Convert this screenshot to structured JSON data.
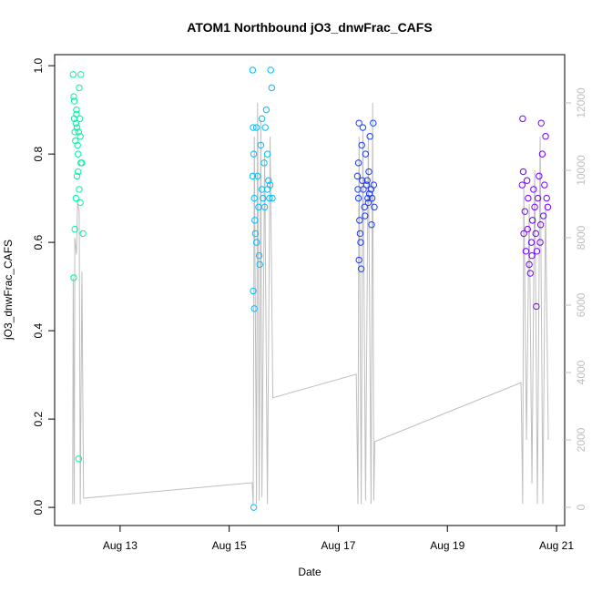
{
  "chart_data": {
    "type": "scatter",
    "title": "ATOM1 Northbound jO3_dnwFrac_CAFS",
    "x_label": "Date",
    "y_label": "jO3_dnwFrac_CAFS",
    "xlim": [
      11.8,
      21.15
    ],
    "xticks": [
      {
        "value": 13,
        "label": "Aug 13"
      },
      {
        "value": 15,
        "label": "Aug 15"
      },
      {
        "value": 17,
        "label": "Aug 17"
      },
      {
        "value": 19,
        "label": "Aug 19"
      },
      {
        "value": 21,
        "label": "Aug 21"
      }
    ],
    "ylim": [
      -0.041,
      1.025
    ],
    "yticks": [
      {
        "value": 0,
        "label": "0.0"
      },
      0.2,
      0.4,
      0.6,
      0.8,
      {
        "value": 1,
        "label": "1.0"
      }
    ],
    "y2lim": [
      -540,
      13432
    ],
    "y2ticks": [
      0,
      2000,
      4000,
      6000,
      8000,
      10000,
      12000
    ],
    "series": [
      {
        "type": "line",
        "axis": "y2",
        "color": "#bebebe",
        "x": [
          12.13,
          12.14,
          12.16,
          12.17,
          12.2,
          12.22,
          12.25,
          12.27,
          12.3,
          12.33,
          15.42,
          15.44,
          15.46,
          15.5,
          15.52,
          15.55,
          15.58,
          15.6,
          15.65,
          15.7,
          15.75,
          15.8,
          17.33,
          17.36,
          17.38,
          17.42,
          17.45,
          17.5,
          17.55,
          17.6,
          17.63,
          17.65,
          17.67,
          20.35,
          20.38,
          20.4,
          20.45,
          20.5,
          20.55,
          20.6,
          20.65,
          20.7,
          20.75,
          20.8,
          20.85
        ],
        "values": [
          100,
          6800,
          100,
          8000,
          7500,
          9000,
          8800,
          100,
          7000,
          270,
          730,
          100,
          11000,
          100,
          12000,
          200,
          11500,
          300,
          10500,
          100,
          11000,
          3250,
          3950,
          100,
          11000,
          100,
          11200,
          200,
          11000,
          100,
          12000,
          200,
          1950,
          3700,
          100,
          9500,
          2000,
          9000,
          700,
          10000,
          100,
          11000,
          100,
          9000,
          2000
        ]
      },
      {
        "color": "#00f5a0",
        "x": [
          12.14,
          12.15,
          12.16,
          12.17,
          12.18,
          12.19,
          12.2,
          12.21,
          12.22,
          12.23,
          12.24,
          12.25,
          12.26,
          12.27,
          12.28,
          12.15,
          12.17,
          12.19,
          12.21,
          12.23,
          12.25,
          12.27,
          12.3,
          12.32,
          12.16,
          12.2,
          12.24,
          12.28
        ],
        "values": [
          0.98,
          0.93,
          0.88,
          0.85,
          0.83,
          0.87,
          0.9,
          0.86,
          0.82,
          0.8,
          0.85,
          0.95,
          0.88,
          0.84,
          0.78,
          0.52,
          0.63,
          0.7,
          0.75,
          0.76,
          0.72,
          0.69,
          0.78,
          0.62,
          0.92,
          0.89,
          0.11,
          0.98
        ]
      },
      {
        "color": "#00bfff",
        "x": [
          15.43,
          15.44,
          15.45,
          15.46,
          15.47,
          15.48,
          15.5,
          15.52,
          15.54,
          15.56,
          15.58,
          15.6,
          15.62,
          15.64,
          15.66,
          15.68,
          15.7,
          15.72,
          15.74,
          15.76,
          15.78,
          15.44,
          15.46,
          15.5,
          15.55,
          15.6,
          15.65,
          15.7,
          15.75,
          15.79,
          15.45,
          15.43
        ],
        "values": [
          0.99,
          0.86,
          0.8,
          0.7,
          0.65,
          0.62,
          0.6,
          0.75,
          0.68,
          0.55,
          0.82,
          0.72,
          0.7,
          0.78,
          0.86,
          0.9,
          0.72,
          0.74,
          0.7,
          0.99,
          0.95,
          0.49,
          0.45,
          0.86,
          0.57,
          0.88,
          0.68,
          0.8,
          0.73,
          0.7,
          0.0,
          0.75
        ]
      },
      {
        "color": "#1a3cff",
        "x": [
          17.35,
          17.36,
          17.37,
          17.38,
          17.39,
          17.4,
          17.42,
          17.44,
          17.46,
          17.48,
          17.5,
          17.52,
          17.54,
          17.56,
          17.58,
          17.6,
          17.62,
          17.64,
          17.66,
          17.37,
          17.41,
          17.45,
          17.49,
          17.53,
          17.57,
          17.61,
          17.65,
          17.38,
          17.43,
          17.55
        ],
        "values": [
          0.75,
          0.72,
          0.7,
          0.87,
          0.65,
          0.62,
          0.54,
          0.74,
          0.72,
          0.68,
          0.8,
          0.73,
          0.7,
          0.76,
          0.84,
          0.72,
          0.7,
          0.87,
          0.68,
          0.78,
          0.6,
          0.86,
          0.66,
          0.74,
          0.71,
          0.64,
          0.73,
          0.56,
          0.82,
          0.69
        ]
      },
      {
        "color": "#7000ff",
        "x": [
          20.37,
          20.38,
          20.4,
          20.42,
          20.44,
          20.46,
          20.48,
          20.5,
          20.52,
          20.54,
          20.56,
          20.58,
          20.6,
          20.62,
          20.64,
          20.66,
          20.68,
          20.7,
          20.72,
          20.74,
          20.76,
          20.78,
          20.8,
          20.82,
          20.84,
          20.39,
          20.47,
          20.55,
          20.63,
          20.71
        ],
        "values": [
          0.73,
          0.88,
          0.62,
          0.67,
          0.58,
          0.74,
          0.7,
          0.55,
          0.53,
          0.6,
          0.65,
          0.72,
          0.68,
          0.62,
          0.58,
          0.7,
          0.75,
          0.6,
          0.87,
          0.8,
          0.66,
          0.73,
          0.84,
          0.7,
          0.68,
          0.76,
          0.63,
          0.57,
          0.455,
          0.64
        ]
      }
    ]
  }
}
